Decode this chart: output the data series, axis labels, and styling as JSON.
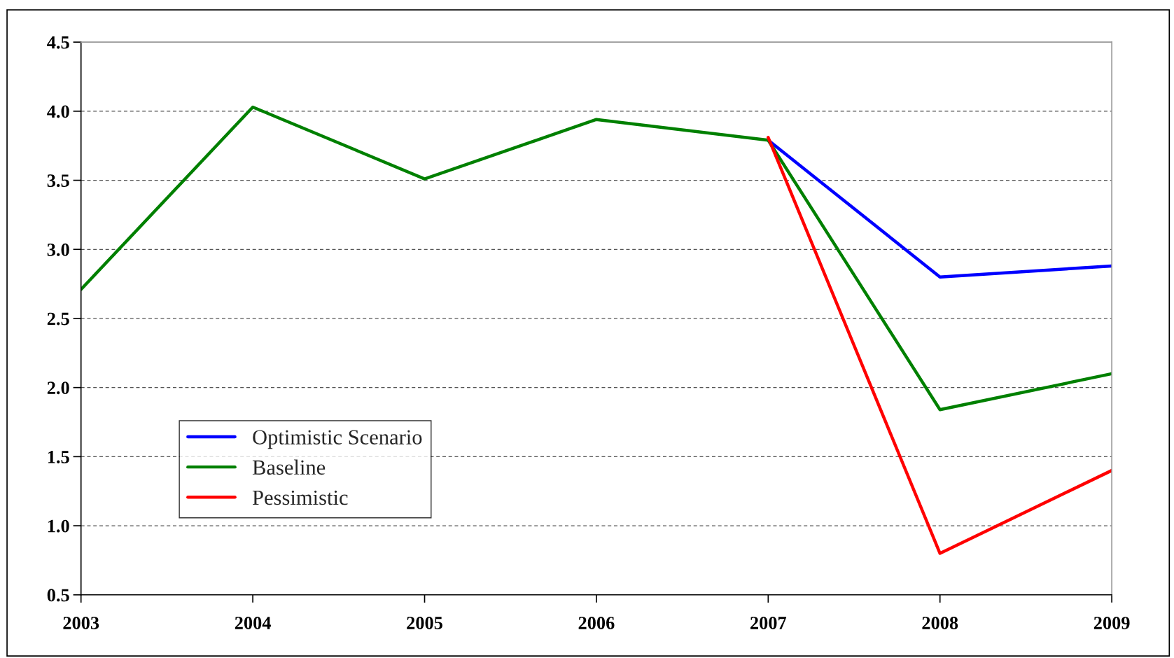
{
  "chart_data": {
    "type": "line",
    "x": [
      2003,
      2004,
      2005,
      2006,
      2007,
      2008,
      2009
    ],
    "series": [
      {
        "name": "Optimistic Scenario",
        "color": "#0000ff",
        "values": [
          null,
          null,
          null,
          null,
          3.79,
          2.8,
          2.88
        ]
      },
      {
        "name": "Baseline",
        "color": "#008000",
        "values": [
          2.71,
          4.03,
          3.51,
          3.94,
          3.79,
          1.84,
          2.1
        ]
      },
      {
        "name": "Pessimistic",
        "color": "#ff0000",
        "values": [
          null,
          null,
          null,
          null,
          3.81,
          0.8,
          1.4
        ]
      }
    ],
    "xlim": [
      2003,
      2009
    ],
    "xticks": [
      2003,
      2004,
      2005,
      2006,
      2007,
      2008,
      2009
    ],
    "ylim": [
      0.5,
      4.5
    ],
    "yticks": [
      {
        "value": 0.5,
        "label": "0.5"
      },
      {
        "value": 1.0,
        "label": "1.0"
      },
      {
        "value": 1.5,
        "label": "1.5"
      },
      {
        "value": 2.0,
        "label": "2.0"
      },
      {
        "value": 2.5,
        "label": "2.5"
      },
      {
        "value": 3.0,
        "label": "3.0"
      },
      {
        "value": 3.5,
        "label": "3.5"
      },
      {
        "value": 4.0,
        "label": "4.0"
      },
      {
        "value": 4.5,
        "label": "4.5"
      }
    ],
    "grid": "y",
    "legend": "bottom left",
    "marker": "none",
    "line_style": "solid"
  }
}
